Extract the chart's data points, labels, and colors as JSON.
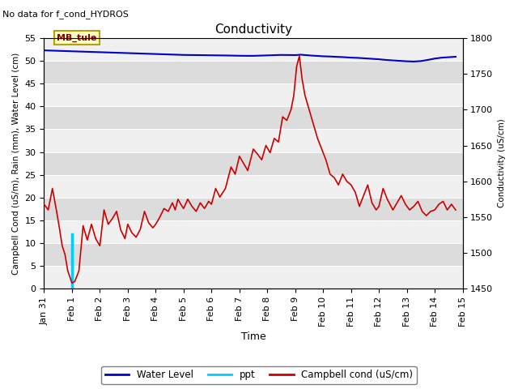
{
  "title": "Conductivity",
  "top_left_text": "No data for f_cond_HYDROS",
  "xlabel": "Time",
  "ylabel_left": "Campbell Cond (uS/m), Rain (mm), Water Level (cm)",
  "ylabel_right": "Conductivity (uS/cm)",
  "ylim_left": [
    0,
    55
  ],
  "ylim_right": [
    1450,
    1800
  ],
  "yticks_left": [
    0,
    5,
    10,
    15,
    20,
    25,
    30,
    35,
    40,
    45,
    50,
    55
  ],
  "yticks_right": [
    1450,
    1500,
    1550,
    1600,
    1650,
    1700,
    1750,
    1800
  ],
  "bg_color": "#e8e8e8",
  "band_color_light": "#f0f0f0",
  "band_color_dark": "#dcdcdc",
  "annotation_box": {
    "text": "MB_tule",
    "facecolor": "#ffffcc",
    "edgecolor": "#b8a000"
  },
  "legend_items": [
    "Water Level",
    "ppt",
    "Campbell cond (uS/cm)"
  ],
  "water_level_color": "#0000cc",
  "ppt_color": "#00ccff",
  "campbell_color": "#cc0000",
  "water_level_data_x": [
    0.0,
    0.25,
    0.5,
    0.75,
    1.0,
    1.25,
    1.5,
    1.75,
    2.0,
    2.25,
    2.5,
    2.75,
    3.0,
    3.25,
    3.5,
    3.75,
    4.0,
    4.25,
    4.5,
    4.75,
    5.0,
    5.25,
    5.5,
    5.75,
    6.0,
    6.25,
    6.5,
    6.75,
    7.0,
    7.25,
    7.5,
    7.75,
    8.0,
    8.25,
    8.5,
    8.75,
    9.0,
    9.1,
    9.2,
    9.3,
    9.4,
    9.5,
    9.6,
    9.75,
    10.0,
    10.25,
    10.5,
    10.75,
    11.0,
    11.25,
    11.5,
    11.75,
    12.0,
    12.25,
    12.5,
    12.75,
    13.0,
    13.25,
    13.5,
    13.75,
    14.0,
    14.25,
    14.5,
    14.75
  ],
  "water_level_data_y": [
    52.3,
    52.25,
    52.2,
    52.15,
    52.1,
    52.05,
    52.0,
    51.95,
    51.9,
    51.85,
    51.8,
    51.75,
    51.7,
    51.65,
    51.6,
    51.55,
    51.5,
    51.45,
    51.4,
    51.35,
    51.3,
    51.28,
    51.26,
    51.24,
    51.22,
    51.2,
    51.18,
    51.15,
    51.12,
    51.1,
    51.1,
    51.15,
    51.2,
    51.25,
    51.3,
    51.28,
    51.26,
    51.3,
    51.35,
    51.3,
    51.25,
    51.2,
    51.15,
    51.1,
    51.0,
    50.95,
    50.88,
    50.8,
    50.7,
    50.65,
    50.55,
    50.45,
    50.35,
    50.2,
    50.1,
    50.0,
    49.9,
    49.85,
    49.95,
    50.2,
    50.5,
    50.7,
    50.8,
    50.9
  ],
  "ppt_x": 1.0,
  "ppt_height": 12.0,
  "campbell_data_x": [
    0.0,
    0.15,
    0.3,
    0.45,
    0.55,
    0.65,
    0.75,
    0.85,
    1.0,
    1.1,
    1.25,
    1.4,
    1.55,
    1.7,
    1.85,
    2.0,
    2.15,
    2.3,
    2.45,
    2.6,
    2.75,
    2.9,
    3.0,
    3.15,
    3.3,
    3.45,
    3.6,
    3.75,
    3.9,
    4.0,
    4.15,
    4.3,
    4.45,
    4.6,
    4.7,
    4.8,
    4.9,
    5.0,
    5.15,
    5.3,
    5.45,
    5.6,
    5.75,
    5.9,
    6.0,
    6.15,
    6.3,
    6.5,
    6.7,
    6.85,
    7.0,
    7.15,
    7.3,
    7.5,
    7.65,
    7.8,
    7.95,
    8.1,
    8.25,
    8.4,
    8.55,
    8.7,
    8.85,
    8.95,
    9.05,
    9.15,
    9.25,
    9.35,
    9.5,
    9.65,
    9.8,
    9.9,
    10.0,
    10.1,
    10.25,
    10.4,
    10.55,
    10.7,
    10.85,
    11.0,
    11.15,
    11.3,
    11.45,
    11.6,
    11.75,
    11.9,
    12.0,
    12.15,
    12.3,
    12.5,
    12.65,
    12.8,
    12.95,
    13.1,
    13.25,
    13.4,
    13.55,
    13.7,
    13.85,
    14.0,
    14.15,
    14.3,
    14.45,
    14.6,
    14.75
  ],
  "campbell_data_y": [
    1568,
    1560,
    1590,
    1558,
    1535,
    1510,
    1498,
    1475,
    1458,
    1460,
    1475,
    1538,
    1518,
    1540,
    1520,
    1510,
    1560,
    1540,
    1548,
    1558,
    1532,
    1520,
    1540,
    1528,
    1522,
    1533,
    1558,
    1542,
    1535,
    1540,
    1550,
    1562,
    1558,
    1570,
    1560,
    1575,
    1568,
    1562,
    1575,
    1565,
    1558,
    1570,
    1562,
    1572,
    1568,
    1590,
    1578,
    1590,
    1620,
    1610,
    1635,
    1625,
    1615,
    1645,
    1638,
    1630,
    1650,
    1640,
    1660,
    1655,
    1690,
    1685,
    1700,
    1720,
    1760,
    1775,
    1742,
    1720,
    1700,
    1680,
    1660,
    1650,
    1640,
    1630,
    1610,
    1605,
    1595,
    1610,
    1600,
    1595,
    1585,
    1565,
    1580,
    1595,
    1570,
    1560,
    1565,
    1590,
    1575,
    1560,
    1570,
    1580,
    1568,
    1560,
    1565,
    1572,
    1558,
    1552,
    1558,
    1560,
    1568,
    1572,
    1560,
    1568,
    1560
  ],
  "xmin": 0,
  "xmax": 15,
  "xtick_labels": [
    "Jan 31",
    "Feb 1",
    "Feb 2",
    "Feb 3",
    "Feb 4",
    "Feb 5",
    "Feb 6",
    "Feb 7",
    "Feb 8",
    "Feb 9",
    "Feb 10",
    "Feb 11",
    "Feb 12",
    "Feb 13",
    "Feb 14",
    "Feb 15"
  ],
  "xtick_positions": [
    0,
    1,
    2,
    3,
    4,
    5,
    6,
    7,
    8,
    9,
    10,
    11,
    12,
    13,
    14,
    15
  ]
}
